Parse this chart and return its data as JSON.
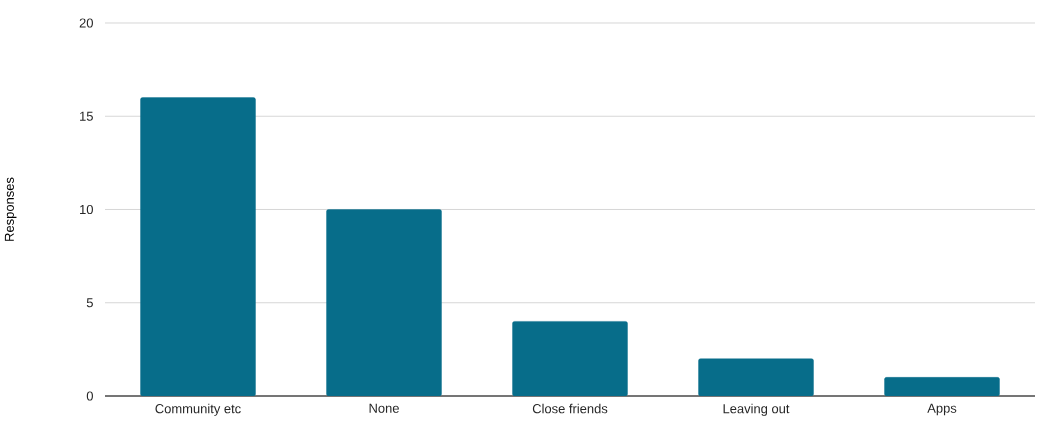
{
  "chart_data": {
    "type": "bar",
    "ylabel": "Responses",
    "categories": [
      "Community etc",
      "None",
      "Close friends",
      "Leaving out",
      "Apps"
    ],
    "values": [
      16,
      10,
      4,
      2,
      1
    ],
    "color": "#076d8a",
    "ylim": [
      0,
      20
    ],
    "yticks": [
      0,
      5,
      10,
      15,
      20
    ],
    "grid": "y"
  }
}
